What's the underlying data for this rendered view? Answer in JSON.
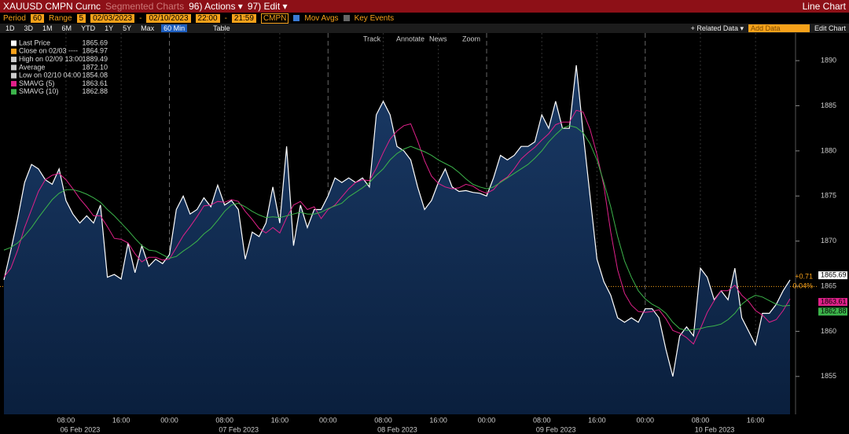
{
  "toolbar": {
    "security": "XAUUSD CMPN Curnc",
    "segmented": "Segmented Charts",
    "actions": "96) Actions ▾",
    "edit": "97) Edit ▾",
    "chart_kind": "Line Chart",
    "period_label": "Period",
    "period": "60",
    "range_label": "Range",
    "range": "5",
    "start_date": "02/03/2023",
    "dash1": "-",
    "end_date": "02/10/2023",
    "start_time": "22:00",
    "dash2": "-",
    "end_time": "21:59",
    "source": "CMPN",
    "mov_avgs": "Mov Avgs",
    "key_events": "Key Events",
    "ranges": [
      "1D",
      "3D",
      "1M",
      "6M",
      "YTD",
      "1Y",
      "5Y",
      "Max",
      "60 Min"
    ],
    "table": "Table",
    "related": "+ Related Data ▾",
    "add_data": "Add Data",
    "edit_chart": "Edit Chart",
    "tools": [
      "Track",
      "Annotate",
      "News",
      "Zoom"
    ]
  },
  "chart_data": {
    "type": "line",
    "ylim": [
      1850.8,
      1892.8
    ],
    "yticks": [
      1855,
      1860,
      1865,
      1870,
      1875,
      1880,
      1885,
      1890
    ],
    "categories": [
      null,
      null,
      null,
      null,
      null,
      null,
      null,
      null,
      null,
      "08:00",
      null,
      null,
      null,
      null,
      null,
      null,
      null,
      "16:00",
      null,
      null,
      null,
      null,
      null,
      null,
      "00:00",
      null,
      null,
      null,
      null,
      null,
      null,
      null,
      "08:00",
      null,
      null,
      null,
      null,
      null,
      null,
      null,
      "16:00",
      null,
      null,
      null,
      null,
      null,
      null,
      "00:00",
      null,
      null,
      null,
      null,
      null,
      null,
      null,
      "08:00",
      null,
      null,
      null,
      null,
      null,
      null,
      null,
      "16:00",
      null,
      null,
      null,
      null,
      null,
      null,
      "00:00",
      null,
      null,
      null,
      null,
      null,
      null,
      null,
      "08:00",
      null,
      null,
      null,
      null,
      null,
      null,
      null,
      "16:00",
      null,
      null,
      null,
      null,
      null,
      null,
      "00:00",
      null,
      null,
      null,
      null,
      null,
      null,
      null,
      "08:00",
      null,
      null,
      null,
      null,
      null,
      null,
      null,
      "16:00",
      null,
      null,
      null,
      null,
      null
    ],
    "dates": [
      "06 Feb 2023",
      "07 Feb 2023",
      "08 Feb 2023",
      "09 Feb 2023",
      "10 Feb 2023"
    ],
    "series": [
      {
        "name": "Last Price",
        "color": "#ffffff",
        "legend_value": "1865.69",
        "area": true,
        "values": [
          1865.7,
          1869,
          1872.5,
          1876.5,
          1878.5,
          1878,
          1876.8,
          1876.3,
          1878,
          1874.5,
          1873,
          1872,
          1872.8,
          1872,
          1874,
          1866,
          1866.3,
          1865.8,
          1869.8,
          1866.5,
          1869.5,
          1867.2,
          1868,
          1867.5,
          1868.5,
          1873.5,
          1875,
          1873,
          1873.5,
          1874.8,
          1873.8,
          1876.2,
          1874,
          1874.5,
          1873.5,
          1868,
          1871,
          1870.5,
          1872,
          1876,
          1872,
          1880.5,
          1869.5,
          1874,
          1871.5,
          1873.5,
          1873.5,
          1875,
          1877,
          1876.5,
          1877,
          1876.5,
          1877,
          1876,
          1884,
          1885.5,
          1884,
          1880.5,
          1880,
          1879,
          1876,
          1873.5,
          1874.5,
          1876.5,
          1878,
          1876,
          1875.5,
          1875.6,
          1875.4,
          1875.3,
          1875,
          1877,
          1879.5,
          1879,
          1879.5,
          1880.5,
          1880.5,
          1881,
          1884,
          1882.5,
          1885.5,
          1882.5,
          1882.5,
          1889.5,
          1882,
          1875,
          1868,
          1865.5,
          1864,
          1861.5,
          1861,
          1861.5,
          1861,
          1862.5,
          1862.5,
          1861.5,
          1858,
          1855,
          1859.5,
          1860.5,
          1859.5,
          1867,
          1866,
          1863.5,
          1864.5,
          1863.5,
          1867,
          1861.5,
          1860,
          1858.5,
          1862,
          1862,
          1863,
          1864.5,
          1865.69
        ]
      },
      {
        "name": "SMAVG (5)",
        "color": "#e0218a",
        "legend_value": "1863.61",
        "values": [
          1866,
          1867,
          1869,
          1871.5,
          1873.5,
          1875.5,
          1876.8,
          1877.3,
          1877.5,
          1876.8,
          1875.8,
          1874.7,
          1873.8,
          1872.8,
          1872.8,
          1871.6,
          1870.3,
          1870.2,
          1869.8,
          1868.6,
          1867.7,
          1868.2,
          1868.2,
          1867.9,
          1868,
          1869.3,
          1870.6,
          1871.6,
          1872.7,
          1873.9,
          1874,
          1874.4,
          1874.3,
          1874.6,
          1874.4,
          1873.3,
          1872.4,
          1871.4,
          1870.9,
          1871.5,
          1870.9,
          1872.6,
          1874,
          1874.4,
          1873.5,
          1873.8,
          1872.5,
          1873.5,
          1874,
          1874.9,
          1875.8,
          1876.5,
          1876.8,
          1876.7,
          1878.1,
          1879.8,
          1881.3,
          1882.2,
          1882.8,
          1883,
          1881.1,
          1878.9,
          1877.2,
          1876.4,
          1876,
          1875.8,
          1875.9,
          1876.3,
          1876.1,
          1875.6,
          1875.3,
          1875.7,
          1876.6,
          1877.1,
          1878,
          1879.1,
          1879.8,
          1880.4,
          1881.2,
          1881.9,
          1882.9,
          1883.2,
          1883.2,
          1884.5,
          1884.3,
          1882.4,
          1879.6,
          1876.1,
          1871,
          1866.8,
          1864.2,
          1862.9,
          1862.2,
          1862.1,
          1862.2,
          1862.4,
          1861.4,
          1860.1,
          1859.8,
          1859.3,
          1858.6,
          1860.3,
          1862.1,
          1863.4,
          1864.5,
          1864.5,
          1865.1,
          1864,
          1863.3,
          1862.3,
          1861.8,
          1861,
          1861.3,
          1862.3,
          1863.61
        ]
      },
      {
        "name": "SMAVG (10)",
        "color": "#3cb44b",
        "legend_value": "1862.88",
        "values": [
          1869,
          1869.3,
          1869.8,
          1870.6,
          1871.5,
          1872.6,
          1873.6,
          1874.6,
          1875.3,
          1875.7,
          1875.7,
          1875.5,
          1875.2,
          1874.8,
          1874.3,
          1873.5,
          1872.8,
          1872,
          1871.2,
          1870.3,
          1869.5,
          1869,
          1868.9,
          1868.5,
          1868.1,
          1868.3,
          1868.9,
          1869.4,
          1870,
          1870.8,
          1871.4,
          1872.3,
          1873.3,
          1874,
          1874.2,
          1873.8,
          1873.3,
          1872.9,
          1872.6,
          1872.7,
          1872.6,
          1872.8,
          1873,
          1873.2,
          1873,
          1873,
          1873.2,
          1873.6,
          1873.9,
          1874.2,
          1874.9,
          1875.4,
          1875.9,
          1876.5,
          1877.3,
          1878,
          1879,
          1879.7,
          1880.2,
          1880.5,
          1880.2,
          1879.9,
          1879.5,
          1879,
          1878.6,
          1878.2,
          1877.6,
          1876.9,
          1876.3,
          1876,
          1875.8,
          1876,
          1876.5,
          1877,
          1877.5,
          1878,
          1878.5,
          1879.2,
          1880,
          1881,
          1881.8,
          1882.5,
          1882.8,
          1882.6,
          1882,
          1880.8,
          1879,
          1876.5,
          1873.8,
          1870.5,
          1867.8,
          1866,
          1864.5,
          1863.6,
          1863,
          1862.6,
          1862,
          1861,
          1860.3,
          1860.1,
          1860.2,
          1860.3,
          1860.5,
          1860.6,
          1860.8,
          1861.3,
          1862,
          1863,
          1863.6,
          1864,
          1863.8,
          1863.4,
          1863,
          1862.8,
          1862.88
        ]
      }
    ],
    "stats": [
      {
        "label": "Close on 02/03 ----",
        "value": "1864.97",
        "color": "#f7a11a"
      },
      {
        "label": "High on 02/09 13:00",
        "value": "1889.49",
        "color": "#cccccc"
      },
      {
        "label": "Average",
        "value": "1872.10",
        "color": "#cccccc"
      },
      {
        "label": "Low on 02/10 04:00",
        "value": "1854.08",
        "color": "#cccccc"
      }
    ],
    "close_line": 1864.97,
    "change": "+0.71",
    "change_pct": "0.04%"
  }
}
